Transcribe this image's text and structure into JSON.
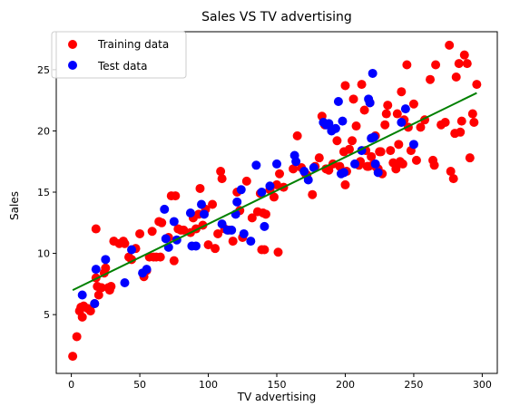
{
  "chart_data": {
    "type": "scatter",
    "title": "Sales VS TV advertising",
    "xlabel": "TV advertising",
    "ylabel": "Sales",
    "xlim": [
      -11,
      311
    ],
    "ylim": [
      0.2,
      28.1
    ],
    "xticks": [
      0,
      50,
      100,
      150,
      200,
      250,
      300
    ],
    "yticks": [
      5,
      10,
      15,
      20,
      25
    ],
    "grid": false,
    "legend_position": "upper-left",
    "series": [
      {
        "name": "Training data",
        "color": "#ff0000",
        "points": [
          [
            1,
            1.6
          ],
          [
            4,
            3.2
          ],
          [
            6,
            5.3
          ],
          [
            7,
            5.6
          ],
          [
            8,
            4.8
          ],
          [
            9,
            5.7
          ],
          [
            12,
            5.5
          ],
          [
            14,
            5.3
          ],
          [
            17,
            5.9
          ],
          [
            18,
            12.0
          ],
          [
            18,
            8.0
          ],
          [
            19,
            7.3
          ],
          [
            20,
            6.6
          ],
          [
            21,
            7.2
          ],
          [
            22,
            7.2
          ],
          [
            24,
            8.4
          ],
          [
            25,
            8.8
          ],
          [
            27,
            7.2
          ],
          [
            28,
            7.0
          ],
          [
            29,
            7.3
          ],
          [
            31,
            11.0
          ],
          [
            35,
            10.8
          ],
          [
            38,
            11.0
          ],
          [
            39,
            10.8
          ],
          [
            42,
            9.7
          ],
          [
            44,
            9.5
          ],
          [
            47,
            10.4
          ],
          [
            50,
            11.6
          ],
          [
            53,
            8.1
          ],
          [
            55,
            8.6
          ],
          [
            57,
            9.7
          ],
          [
            59,
            11.8
          ],
          [
            60,
            9.7
          ],
          [
            62,
            9.7
          ],
          [
            64,
            12.6
          ],
          [
            65,
            9.7
          ],
          [
            66,
            12.5
          ],
          [
            71,
            11.3
          ],
          [
            73,
            14.7
          ],
          [
            75,
            9.4
          ],
          [
            76,
            14.7
          ],
          [
            78,
            12.0
          ],
          [
            80,
            11.9
          ],
          [
            82,
            11.9
          ],
          [
            87,
            11.7
          ],
          [
            89,
            12.9
          ],
          [
            91,
            12.0
          ],
          [
            93,
            13.2
          ],
          [
            94,
            15.3
          ],
          [
            96,
            12.3
          ],
          [
            98,
            13.6
          ],
          [
            100,
            10.7
          ],
          [
            103,
            14.0
          ],
          [
            105,
            10.4
          ],
          [
            107,
            11.6
          ],
          [
            109,
            16.7
          ],
          [
            110,
            16.1
          ],
          [
            112,
            12.0
          ],
          [
            115,
            11.9
          ],
          [
            118,
            11.0
          ],
          [
            121,
            15.0
          ],
          [
            123,
            13.5
          ],
          [
            125,
            11.3
          ],
          [
            128,
            15.9
          ],
          [
            132,
            12.9
          ],
          [
            136,
            13.4
          ],
          [
            138,
            14.9
          ],
          [
            139,
            10.3
          ],
          [
            140,
            13.3
          ],
          [
            141,
            10.3
          ],
          [
            142,
            13.2
          ],
          [
            145,
            15.2
          ],
          [
            148,
            14.6
          ],
          [
            150,
            15.6
          ],
          [
            151,
            10.1
          ],
          [
            152,
            16.5
          ],
          [
            155,
            15.4
          ],
          [
            162,
            16.9
          ],
          [
            165,
            19.6
          ],
          [
            168,
            17.0
          ],
          [
            171,
            16.5
          ],
          [
            172,
            16.4
          ],
          [
            176,
            14.8
          ],
          [
            178,
            17.1
          ],
          [
            181,
            17.8
          ],
          [
            183,
            21.2
          ],
          [
            185,
            20.5
          ],
          [
            186,
            16.9
          ],
          [
            188,
            16.8
          ],
          [
            191,
            17.3
          ],
          [
            194,
            19.2
          ],
          [
            196,
            17.1
          ],
          [
            198,
            16.7
          ],
          [
            199,
            18.3
          ],
          [
            200,
            23.7
          ],
          [
            200,
            15.6
          ],
          [
            201,
            16.7
          ],
          [
            203,
            18.5
          ],
          [
            205,
            19.2
          ],
          [
            206,
            22.6
          ],
          [
            208,
            20.4
          ],
          [
            210,
            17.2
          ],
          [
            211,
            17.5
          ],
          [
            212,
            23.8
          ],
          [
            214,
            21.7
          ],
          [
            215,
            18.4
          ],
          [
            216,
            17.1
          ],
          [
            217,
            17.1
          ],
          [
            218,
            22.3
          ],
          [
            219,
            17.9
          ],
          [
            220,
            17.2
          ],
          [
            222,
            19.6
          ],
          [
            223,
            17.0
          ],
          [
            224,
            16.9
          ],
          [
            225,
            18.3
          ],
          [
            226,
            18.3
          ],
          [
            227,
            16.5
          ],
          [
            229,
            20.5
          ],
          [
            230,
            21.4
          ],
          [
            231,
            22.1
          ],
          [
            233,
            18.4
          ],
          [
            235,
            17.4
          ],
          [
            237,
            16.9
          ],
          [
            238,
            21.4
          ],
          [
            239,
            18.9
          ],
          [
            240,
            17.5
          ],
          [
            241,
            23.2
          ],
          [
            242,
            17.3
          ],
          [
            243,
            20.9
          ],
          [
            245,
            25.4
          ],
          [
            246,
            20.3
          ],
          [
            248,
            18.4
          ],
          [
            250,
            22.2
          ],
          [
            252,
            17.6
          ],
          [
            255,
            20.3
          ],
          [
            258,
            20.9
          ],
          [
            262,
            24.2
          ],
          [
            264,
            17.6
          ],
          [
            265,
            17.2
          ],
          [
            266,
            25.4
          ],
          [
            270,
            20.5
          ],
          [
            273,
            20.7
          ],
          [
            276,
            27.0
          ],
          [
            277,
            16.7
          ],
          [
            279,
            16.1
          ],
          [
            280,
            19.8
          ],
          [
            281,
            24.4
          ],
          [
            283,
            25.5
          ],
          [
            284,
            19.9
          ],
          [
            285,
            20.8
          ],
          [
            287,
            26.2
          ],
          [
            289,
            25.5
          ],
          [
            291,
            17.8
          ],
          [
            293,
            21.4
          ],
          [
            294,
            20.7
          ],
          [
            296,
            23.8
          ]
        ]
      },
      {
        "name": "Test data",
        "color": "#0000ff",
        "points": [
          [
            8,
            6.6
          ],
          [
            17,
            5.9
          ],
          [
            18,
            8.7
          ],
          [
            25,
            9.5
          ],
          [
            39,
            7.6
          ],
          [
            44,
            10.3
          ],
          [
            52,
            8.4
          ],
          [
            55,
            8.7
          ],
          [
            68,
            13.6
          ],
          [
            69,
            11.2
          ],
          [
            71,
            10.5
          ],
          [
            75,
            12.6
          ],
          [
            77,
            11.1
          ],
          [
            87,
            13.3
          ],
          [
            88,
            10.6
          ],
          [
            91,
            10.6
          ],
          [
            95,
            14.0
          ],
          [
            97,
            13.2
          ],
          [
            110,
            12.4
          ],
          [
            114,
            11.9
          ],
          [
            117,
            11.9
          ],
          [
            120,
            13.2
          ],
          [
            121,
            14.2
          ],
          [
            124,
            15.2
          ],
          [
            126,
            11.6
          ],
          [
            131,
            11.0
          ],
          [
            135,
            17.2
          ],
          [
            139,
            15.0
          ],
          [
            141,
            12.2
          ],
          [
            145,
            15.5
          ],
          [
            150,
            17.3
          ],
          [
            163,
            18.0
          ],
          [
            164,
            17.5
          ],
          [
            170,
            16.7
          ],
          [
            173,
            16.0
          ],
          [
            177,
            17.0
          ],
          [
            184,
            20.7
          ],
          [
            186,
            20.5
          ],
          [
            188,
            20.6
          ],
          [
            190,
            20.0
          ],
          [
            193,
            20.2
          ],
          [
            195,
            22.4
          ],
          [
            197,
            16.5
          ],
          [
            198,
            20.8
          ],
          [
            199,
            16.6
          ],
          [
            207,
            17.3
          ],
          [
            212,
            18.4
          ],
          [
            217,
            22.6
          ],
          [
            218,
            22.3
          ],
          [
            219,
            19.4
          ],
          [
            220,
            24.7
          ],
          [
            221,
            19.5
          ],
          [
            222,
            17.3
          ],
          [
            224,
            16.6
          ],
          [
            241,
            20.7
          ],
          [
            244,
            21.8
          ],
          [
            250,
            18.9
          ]
        ]
      }
    ],
    "fit_line": {
      "color": "#008000",
      "x": [
        1,
        296
      ],
      "y": [
        7.0,
        23.1
      ]
    }
  }
}
